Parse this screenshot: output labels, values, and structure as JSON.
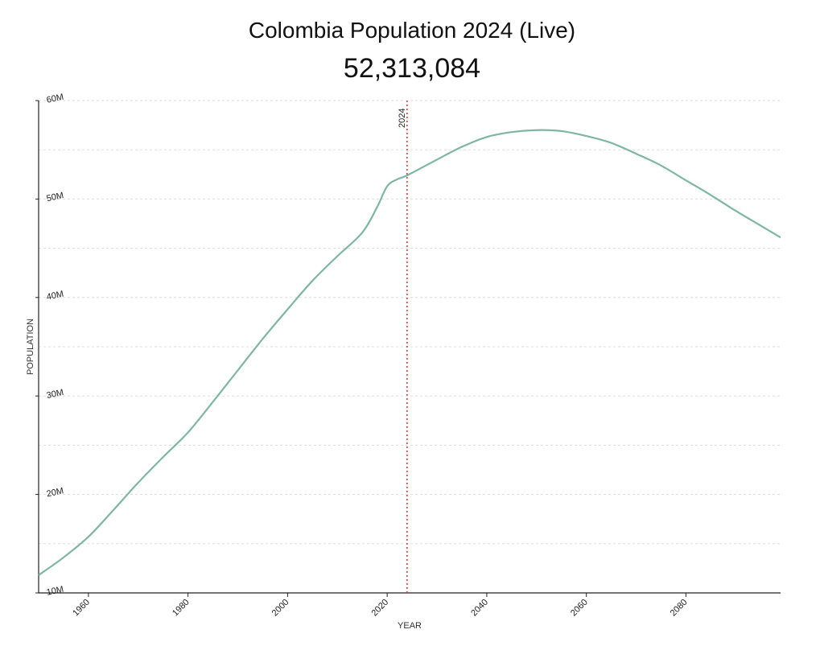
{
  "chart_data": {
    "type": "line",
    "title": "Colombia Population 2024 (Live)",
    "subtitle": "52,313,084",
    "xlabel": "YEAR",
    "ylabel": "POPULATION",
    "xlim": [
      1950,
      2099
    ],
    "ylim": [
      10000000,
      60000000
    ],
    "x_ticks": [
      1960,
      1980,
      2000,
      2020,
      2040,
      2060,
      2080
    ],
    "y_ticks": [
      10000000,
      20000000,
      30000000,
      40000000,
      50000000,
      60000000
    ],
    "y_tick_labels": [
      "10M",
      "20M",
      "30M",
      "40M",
      "50M",
      "60M"
    ],
    "grid": "horizontal dotted every 5M",
    "marker": {
      "year": 2024,
      "label": "2024",
      "color": "#e8393b"
    },
    "line_color": "#7fb5a3",
    "series": [
      {
        "name": "Population",
        "x": [
          1950,
          1955,
          1960,
          1965,
          1970,
          1975,
          1980,
          1985,
          1990,
          1995,
          2000,
          2005,
          2010,
          2015,
          2018,
          2020,
          2022,
          2024,
          2030,
          2035,
          2040,
          2045,
          2050,
          2055,
          2060,
          2065,
          2070,
          2075,
          2080,
          2085,
          2090,
          2095,
          2099
        ],
        "values": [
          11800000,
          13600000,
          15700000,
          18400000,
          21200000,
          23800000,
          26300000,
          29400000,
          32600000,
          35800000,
          38800000,
          41700000,
          44200000,
          46600000,
          49200000,
          51300000,
          52000000,
          52400000,
          54000000,
          55300000,
          56300000,
          56800000,
          57000000,
          56900000,
          56400000,
          55700000,
          54600000,
          53400000,
          51900000,
          50400000,
          48800000,
          47300000,
          46100000
        ]
      }
    ]
  }
}
